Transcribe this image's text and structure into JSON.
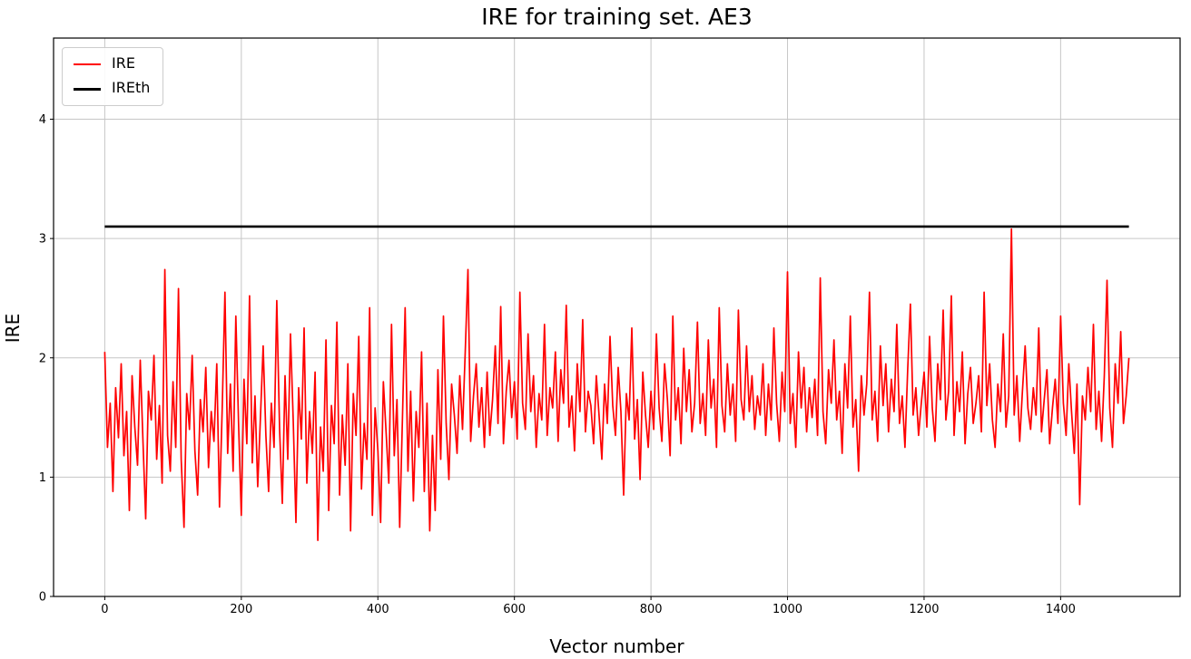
{
  "chart_data": {
    "type": "line",
    "title": "IRE for training set. AE3",
    "xlabel": "Vector number",
    "ylabel": "IRE",
    "xlim": [
      -75,
      1575
    ],
    "ylim": [
      0,
      4.68
    ],
    "xticks": [
      0,
      200,
      400,
      600,
      800,
      1000,
      1200,
      1400
    ],
    "yticks": [
      0,
      1,
      2,
      3,
      4
    ],
    "grid": true,
    "grid_color": "#c6c6c6",
    "legend_position": "upper-left",
    "legend": [
      {
        "label": "IRE",
        "color": "#ff0000"
      },
      {
        "label": "IREth",
        "color": "#000000"
      }
    ],
    "threshold": {
      "name": "IREth",
      "value": 3.1,
      "color": "#000000",
      "x_range": [
        0,
        1500
      ]
    },
    "series": [
      {
        "name": "IRE",
        "color": "#ff0000",
        "x_start": 0,
        "x_step": 4,
        "values": [
          2.05,
          1.25,
          1.62,
          0.88,
          1.75,
          1.33,
          1.95,
          1.18,
          1.55,
          0.72,
          1.85,
          1.42,
          1.1,
          1.98,
          1.3,
          0.65,
          1.72,
          1.48,
          2.02,
          1.15,
          1.6,
          0.95,
          2.74,
          1.35,
          1.05,
          1.8,
          1.25,
          2.58,
          1.15,
          0.58,
          1.7,
          1.4,
          2.02,
          1.22,
          0.85,
          1.65,
          1.38,
          1.92,
          1.08,
          1.55,
          1.3,
          1.95,
          0.75,
          1.58,
          2.55,
          1.2,
          1.78,
          1.05,
          2.35,
          1.45,
          0.68,
          1.82,
          1.28,
          2.52,
          1.12,
          1.68,
          0.92,
          1.5,
          2.1,
          1.35,
          0.88,
          1.62,
          1.25,
          2.48,
          1.4,
          0.78,
          1.85,
          1.15,
          2.2,
          1.48,
          0.62,
          1.75,
          1.32,
          2.25,
          0.95,
          1.55,
          1.2,
          1.88,
          0.47,
          1.42,
          1.05,
          2.15,
          0.72,
          1.6,
          1.28,
          2.3,
          0.85,
          1.52,
          1.1,
          1.95,
          0.55,
          1.7,
          1.35,
          2.18,
          0.9,
          1.45,
          1.15,
          2.42,
          0.68,
          1.58,
          1.22,
          0.62,
          1.8,
          1.38,
          0.95,
          2.28,
          1.18,
          1.65,
          0.58,
          1.48,
          2.42,
          1.05,
          1.72,
          0.8,
          1.55,
          1.25,
          2.05,
          0.88,
          1.62,
          0.55,
          1.35,
          0.72,
          1.9,
          1.15,
          2.35,
          1.45,
          0.98,
          1.78,
          1.52,
          1.2,
          1.85,
          1.4,
          2.05,
          2.74,
          1.3,
          1.68,
          1.95,
          1.42,
          1.75,
          1.25,
          1.88,
          1.35,
          1.65,
          2.1,
          1.45,
          2.43,
          1.28,
          1.72,
          1.98,
          1.5,
          1.8,
          1.32,
          2.55,
          1.62,
          1.4,
          2.2,
          1.55,
          1.85,
          1.25,
          1.7,
          1.48,
          2.28,
          1.35,
          1.75,
          1.58,
          2.05,
          1.3,
          1.9,
          1.62,
          2.44,
          1.42,
          1.68,
          1.22,
          1.95,
          1.55,
          2.32,
          1.38,
          1.72,
          1.6,
          1.28,
          1.85,
          1.52,
          1.15,
          1.78,
          1.45,
          2.18,
          1.6,
          1.35,
          1.92,
          1.55,
          0.85,
          1.7,
          1.48,
          2.25,
          1.32,
          1.65,
          0.98,
          1.88,
          1.52,
          1.25,
          1.72,
          1.4,
          2.2,
          1.58,
          1.3,
          1.95,
          1.65,
          1.18,
          2.35,
          1.48,
          1.75,
          1.28,
          2.08,
          1.55,
          1.9,
          1.38,
          1.62,
          2.3,
          1.45,
          1.7,
          1.35,
          2.15,
          1.58,
          1.82,
          1.25,
          2.42,
          1.6,
          1.38,
          1.95,
          1.52,
          1.78,
          1.3,
          2.4,
          1.65,
          1.48,
          2.1,
          1.55,
          1.85,
          1.4,
          1.68,
          1.52,
          1.95,
          1.35,
          1.78,
          1.48,
          2.25,
          1.62,
          1.3,
          1.88,
          1.55,
          2.72,
          1.45,
          1.7,
          1.25,
          2.05,
          1.58,
          1.92,
          1.38,
          1.75,
          1.5,
          1.82,
          1.35,
          2.67,
          1.55,
          1.28,
          1.9,
          1.62,
          2.15,
          1.48,
          1.72,
          1.2,
          1.95,
          1.58,
          2.35,
          1.42,
          1.65,
          1.05,
          1.85,
          1.52,
          1.78,
          2.55,
          1.48,
          1.72,
          1.3,
          2.1,
          1.6,
          1.95,
          1.38,
          1.82,
          1.55,
          2.28,
          1.45,
          1.68,
          1.25,
          1.9,
          2.45,
          1.52,
          1.75,
          1.35,
          1.62,
          1.88,
          1.42,
          2.18,
          1.58,
          1.3,
          1.95,
          1.65,
          2.4,
          1.48,
          1.72,
          2.52,
          1.35,
          1.8,
          1.55,
          2.05,
          1.28,
          1.7,
          1.92,
          1.45,
          1.62,
          1.85,
          1.38,
          2.55,
          1.6,
          1.95,
          1.48,
          1.25,
          1.78,
          1.55,
          2.2,
          1.42,
          1.68,
          3.08,
          1.52,
          1.85,
          1.3,
          1.72,
          2.1,
          1.58,
          1.4,
          1.75,
          1.52,
          2.25,
          1.38,
          1.65,
          1.9,
          1.28,
          1.58,
          1.82,
          1.45,
          2.35,
          1.62,
          1.35,
          1.95,
          1.55,
          1.2,
          1.78,
          0.77,
          1.68,
          1.48,
          1.92,
          1.55,
          2.28,
          1.4,
          1.72,
          1.3,
          1.85,
          2.65,
          1.58,
          1.25,
          1.95,
          1.62,
          2.22,
          1.45,
          1.68,
          2.0
        ]
      }
    ]
  }
}
